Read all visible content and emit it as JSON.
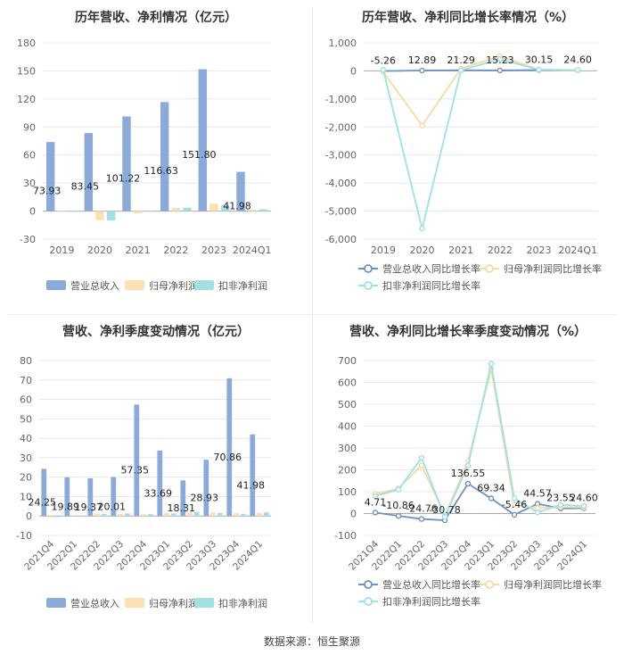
{
  "source": "数据来源：恒生聚源",
  "colors": {
    "revenue": "#8aaadb",
    "netprofit": "#fbe0b0",
    "deducted": "#a3e0e0",
    "line_revenue": "#6f8fc6",
    "line_netprofit": "#f8d9a0",
    "line_deducted": "#9be2e6",
    "grid": "#e8e8e8",
    "axis": "#999999",
    "label": "#222222"
  },
  "chart_data": [
    {
      "id": "annual-bar",
      "type": "bar",
      "title": "历年营收、净利情况（亿元）",
      "categories": [
        "2019",
        "2020",
        "2021",
        "2022",
        "2023",
        "2024Q1"
      ],
      "yticks": [
        -30,
        0,
        30,
        60,
        90,
        120,
        150,
        180
      ],
      "ylim": [
        -30,
        180
      ],
      "series": [
        {
          "name": "营业总收入",
          "key": "revenue",
          "values": [
            73.93,
            83.45,
            101.22,
            116.63,
            151.8,
            41.98
          ],
          "labels": [
            "73.93",
            "83.45",
            "101.22",
            "116.63",
            "151.80",
            "41.98"
          ]
        },
        {
          "name": "归母净利润",
          "key": "netprofit",
          "values": [
            -0.6,
            -9.5,
            -2.2,
            3.4,
            7.9,
            1.5
          ],
          "labels": []
        },
        {
          "name": "扣非净利润",
          "key": "deducted",
          "values": [
            -0.8,
            -10.0,
            -0.6,
            3.7,
            6.4,
            2.0
          ],
          "labels": []
        }
      ],
      "legend": "bottom"
    },
    {
      "id": "annual-line",
      "type": "line",
      "title": "历年营收、净利同比增长率情况（%）",
      "categories": [
        "2019",
        "2020",
        "2021",
        "2022",
        "2023",
        "2024Q1"
      ],
      "yticks": [
        -6000,
        -5000,
        -4000,
        -3000,
        -2000,
        -1000,
        0,
        1000
      ],
      "ytick_labels": [
        "-6,000",
        "-5,000",
        "-4,000",
        "-3,000",
        "-2,000",
        "-1,000",
        "0",
        "1,000"
      ],
      "ylim": [
        -6000,
        1000
      ],
      "series": [
        {
          "name": "营业总收入同比增长率",
          "key": "line_revenue",
          "values": [
            -5.26,
            12.89,
            21.29,
            15.23,
            30.15,
            24.6
          ],
          "labels": [
            "-5.26",
            "12.89",
            "21.29",
            "15.23",
            "30.15",
            "24.60"
          ]
        },
        {
          "name": "归母净利润同比增长率",
          "key": "line_netprofit",
          "values": [
            -30,
            -1950,
            80,
            530,
            50,
            20
          ],
          "labels": []
        },
        {
          "name": "扣非净利润同比增长率",
          "key": "line_deducted",
          "values": [
            40,
            -5620,
            20,
            420,
            40,
            30
          ],
          "labels": []
        }
      ],
      "legend": "bottom"
    },
    {
      "id": "quarter-bar",
      "type": "bar",
      "title": "营收、净利季度变动情况（亿元）",
      "categories": [
        "2021Q4",
        "2022Q1",
        "2022Q2",
        "2022Q3",
        "2022Q4",
        "2023Q1",
        "2023Q2",
        "2023Q3",
        "2023Q4",
        "2024Q1"
      ],
      "yticks": [
        -10,
        0,
        10,
        20,
        30,
        40,
        50,
        60,
        70,
        80
      ],
      "ylim": [
        -10,
        80
      ],
      "series": [
        {
          "name": "营业总收入",
          "key": "revenue",
          "values": [
            24.25,
            19.89,
            19.37,
            20.01,
            57.35,
            33.69,
            18.31,
            28.93,
            70.86,
            41.98
          ],
          "labels": [
            "24.25",
            "19.89",
            "19.37",
            "20.01",
            "57.35",
            "33.69",
            "18.31",
            "28.93",
            "70.86",
            "41.98"
          ]
        },
        {
          "name": "归母净利润",
          "key": "netprofit",
          "values": [
            -0.8,
            0.3,
            1.2,
            1.0,
            1.0,
            1.5,
            1.9,
            1.8,
            1.5,
            1.6
          ],
          "labels": []
        },
        {
          "name": "扣非净利润",
          "key": "deducted",
          "values": [
            -0.6,
            0.2,
            1.0,
            1.3,
            1.1,
            1.3,
            2.2,
            1.6,
            1.1,
            1.9
          ],
          "labels": []
        }
      ],
      "legend": "bottom"
    },
    {
      "id": "quarter-line",
      "type": "line",
      "title": "营收、净利同比增长率季度变动情况（%）",
      "categories": [
        "2021Q4",
        "2022Q1",
        "2022Q2",
        "2022Q3",
        "2022Q4",
        "2023Q1",
        "2023Q2",
        "2023Q3",
        "2023Q4",
        "2024Q1"
      ],
      "yticks": [
        -100,
        0,
        100,
        200,
        300,
        400,
        500,
        600,
        700
      ],
      "ylim": [
        -100,
        700
      ],
      "series": [
        {
          "name": "营业总收入同比增长率",
          "key": "line_revenue",
          "values": [
            4.71,
            -10.86,
            -24.76,
            -30.78,
            136.55,
            69.34,
            -5.46,
            44.57,
            23.55,
            24.6
          ],
          "labels": [
            "4.71",
            "-10.86",
            "-24.76",
            "-30.78",
            "136.55",
            "69.34",
            "-5.46",
            "44.57",
            "23.55",
            "24.60"
          ]
        },
        {
          "name": "归母净利润同比增长率",
          "key": "line_netprofit",
          "values": [
            90,
            115,
            220,
            -10,
            240,
            660,
            40,
            25,
            30,
            28
          ],
          "labels": []
        },
        {
          "name": "扣非净利润同比增长率",
          "key": "line_deducted",
          "values": [
            80,
            110,
            255,
            -15,
            220,
            685,
            70,
            5,
            40,
            35
          ],
          "labels": []
        }
      ],
      "legend": "bottom"
    }
  ]
}
